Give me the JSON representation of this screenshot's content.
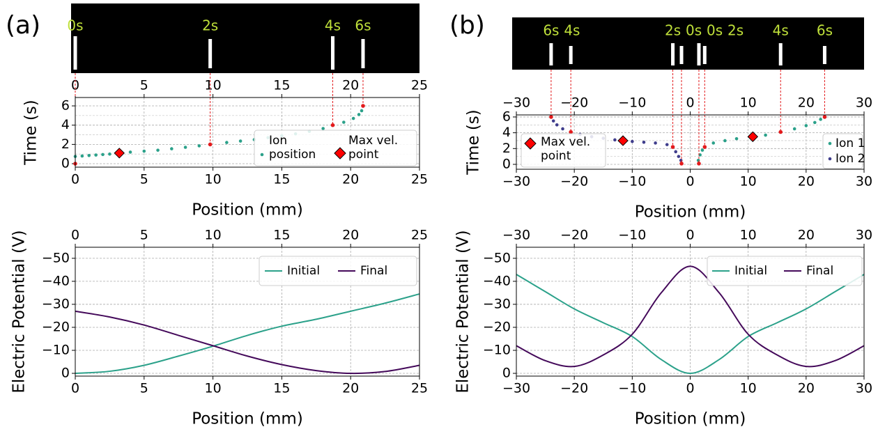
{
  "chart_data": [
    {
      "type": "scatter",
      "panel_label": "(a)",
      "x_label": "Position (mm)",
      "y_label": "Time (s)",
      "xlim": [
        0,
        25
      ],
      "xticks": [
        0,
        5,
        10,
        15,
        20,
        25
      ],
      "ylim": [
        -0.36,
        6.87
      ],
      "yticks": [
        0,
        2,
        4,
        6
      ],
      "grid": true,
      "minor_grid": true,
      "top_axis": true,
      "snapshots": [
        {
          "label": "0s",
          "x": 0,
          "t": 0
        },
        {
          "label": "2s",
          "x": 9.8,
          "t": 2
        },
        {
          "label": "4s",
          "x": 18.7,
          "t": 4
        },
        {
          "label": "6s",
          "x": 20.9,
          "t": 6
        }
      ],
      "series": [
        {
          "name": "Ion position",
          "color": "#2ba18a",
          "x": [
            0,
            0,
            0.5,
            1,
            1.5,
            2,
            2.5,
            3.2,
            4,
            5,
            6,
            7,
            8,
            9,
            9.8,
            11,
            12,
            13,
            14,
            15,
            16,
            17,
            18,
            18.7,
            19.5,
            20.2,
            20.6,
            20.8,
            20.9
          ],
          "values": [
            0,
            0.75,
            0.8,
            0.85,
            0.9,
            0.95,
            1.0,
            1.1,
            1.2,
            1.3,
            1.4,
            1.55,
            1.7,
            1.85,
            2,
            2.2,
            2.35,
            2.5,
            2.7,
            2.9,
            3.1,
            3.35,
            3.65,
            4,
            4.3,
            4.7,
            5.1,
            5.5,
            6
          ]
        }
      ],
      "max_velocity": {
        "name": "Max vel. point",
        "color": "#ff0000",
        "x": [
          3.2
        ],
        "values": [
          1.1
        ]
      }
    },
    {
      "type": "line",
      "x_label": "Position (mm)",
      "y_label": "Electric Potential (V)",
      "xlim": [
        0,
        25
      ],
      "xticks": [
        0,
        5,
        10,
        15,
        20,
        25
      ],
      "ylim": [
        1.2,
        -54.8
      ],
      "yticks": [
        {
          "value": -50,
          "label": "−50"
        },
        {
          "value": -40,
          "label": "−40"
        },
        {
          "value": -30,
          "label": "−30"
        },
        {
          "value": -20,
          "label": "−20"
        },
        {
          "value": -10,
          "label": "−10"
        },
        0
      ],
      "grid": true,
      "top_axis": true,
      "x": [
        0,
        2.5,
        5,
        7.5,
        10,
        12.5,
        15,
        17.5,
        20,
        22.5,
        25
      ],
      "series": [
        {
          "name": "Initial",
          "color": "#2ba18a",
          "values": [
            0,
            -0.9,
            -3.5,
            -7.5,
            -11.8,
            -16.5,
            -20.5,
            -23.5,
            -27,
            -30.5,
            -34.5
          ]
        },
        {
          "name": "Final",
          "color": "#44095a",
          "values": [
            -27,
            -24.5,
            -21,
            -16.5,
            -12,
            -7.5,
            -3.8,
            -1.2,
            0,
            -0.8,
            -3.5
          ]
        }
      ]
    },
    {
      "type": "scatter",
      "panel_label": "(b)",
      "x_label": "Position (mm)",
      "y_label": "Time (s)",
      "xlim": [
        -30,
        30
      ],
      "xticks": [
        {
          "value": -30,
          "label": "−30"
        },
        {
          "value": -20,
          "label": "−20"
        },
        {
          "value": -10,
          "label": "−10"
        },
        0,
        10,
        20,
        30
      ],
      "ylim": [
        -0.62,
        6.26
      ],
      "yticks": [
        0,
        2,
        4,
        6
      ],
      "grid": true,
      "minor_grid": true,
      "top_axis": true,
      "snapshots": [
        {
          "label": "6s",
          "x": -24,
          "t": 6
        },
        {
          "label": "4s",
          "x": -20.6,
          "t": 4.1
        },
        {
          "label": "2s",
          "x": -3,
          "t": 2.2
        },
        {
          "label": "0s",
          "x": -1.5,
          "t": 0.1
        },
        {
          "label": "0s",
          "x": 1.5,
          "t": 0.1
        },
        {
          "label": "2s",
          "x": 2.5,
          "t": 2.2
        },
        {
          "label": "4s",
          "x": 15.6,
          "t": 4.1
        },
        {
          "label": "6s",
          "x": 23.2,
          "t": 6
        }
      ],
      "series": [
        {
          "name": "Ion 1",
          "color": "#2ba18a",
          "x": [
            1.5,
            1.4,
            1.7,
            2.1,
            2.5,
            4,
            6,
            8,
            10.8,
            13,
            15.6,
            18,
            20,
            21.5,
            22.5,
            23.2
          ],
          "values": [
            0.1,
            0.5,
            1.2,
            1.8,
            2.2,
            2.7,
            3,
            3.25,
            3.5,
            3.7,
            4.1,
            4.5,
            4.9,
            5.3,
            5.7,
            6
          ]
        },
        {
          "name": "Ion 2",
          "color": "#3f3d8c",
          "x": [
            -1.5,
            -1.6,
            -2,
            -2.5,
            -3,
            -4,
            -6,
            -8,
            -10,
            -11.6,
            -13,
            -15,
            -17,
            -19,
            -20.6,
            -22,
            -23,
            -23.6,
            -24
          ],
          "values": [
            0.1,
            0.5,
            1,
            1.6,
            2.2,
            2.5,
            2.7,
            2.8,
            2.9,
            3,
            3.1,
            3.3,
            3.5,
            3.8,
            4.1,
            4.5,
            5,
            5.5,
            6
          ]
        }
      ],
      "max_velocity": {
        "name": "Max vel. point",
        "color": "#ff0000",
        "x": [
          -11.6,
          10.8
        ],
        "values": [
          3,
          3.5
        ]
      }
    },
    {
      "type": "line",
      "x_label": "Position (mm)",
      "y_label": "Electric Potential (V)",
      "xlim": [
        -30,
        30
      ],
      "xticks": [
        {
          "value": -30,
          "label": "−30"
        },
        {
          "value": -20,
          "label": "−20"
        },
        {
          "value": -10,
          "label": "−10"
        },
        0,
        10,
        20,
        30
      ],
      "ylim": [
        1.2,
        -54.8
      ],
      "yticks": [
        {
          "value": -50,
          "label": "−50"
        },
        {
          "value": -40,
          "label": "−40"
        },
        {
          "value": -30,
          "label": "−30"
        },
        {
          "value": -20,
          "label": "−20"
        },
        {
          "value": -10,
          "label": "−10"
        },
        0
      ],
      "grid": true,
      "top_axis": true,
      "x": [
        -30,
        -25,
        -20,
        -15,
        -10,
        -5,
        0,
        5,
        10,
        15,
        20,
        25,
        30
      ],
      "series": [
        {
          "name": "Initial",
          "color": "#2ba18a",
          "values": [
            -43,
            -35.5,
            -28,
            -22,
            -16,
            -6,
            0,
            -6,
            -16,
            -22,
            -28,
            -35.5,
            -43
          ]
        },
        {
          "name": "Final",
          "color": "#44095a",
          "values": [
            -12,
            -5.5,
            -3,
            -8,
            -17,
            -35,
            -46.5,
            -35,
            -17,
            -8,
            -3,
            -5.5,
            -12
          ]
        }
      ]
    }
  ]
}
